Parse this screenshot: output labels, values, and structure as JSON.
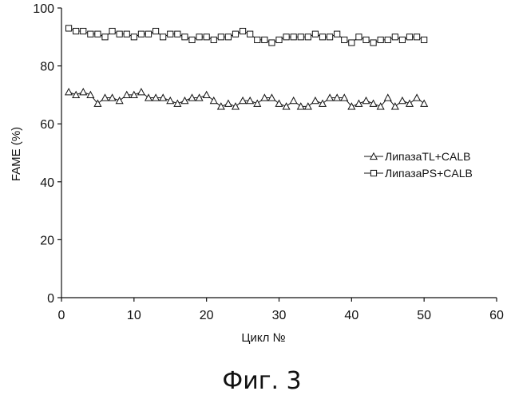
{
  "caption": "Фиг. 3",
  "chart_data": {
    "type": "line",
    "title": "",
    "xlabel": "Цикл №",
    "ylabel": "FAME (%)",
    "xlim": [
      0,
      60
    ],
    "ylim": [
      0,
      100
    ],
    "xticks": [
      0,
      10,
      20,
      30,
      40,
      50,
      60
    ],
    "yticks": [
      0,
      20,
      40,
      60,
      80,
      100
    ],
    "grid": false,
    "legend_position": "right",
    "x": [
      1,
      2,
      3,
      4,
      5,
      6,
      7,
      8,
      9,
      10,
      11,
      12,
      13,
      14,
      15,
      16,
      17,
      18,
      19,
      20,
      21,
      22,
      23,
      24,
      25,
      26,
      27,
      28,
      29,
      30,
      31,
      32,
      33,
      34,
      35,
      36,
      37,
      38,
      39,
      40,
      41,
      42,
      43,
      44,
      45,
      46,
      47,
      48,
      49,
      50
    ],
    "series": [
      {
        "name": "ЛипазаTL+CALB",
        "marker": "triangle",
        "color": "#111111",
        "values": [
          71,
          70,
          71,
          70,
          67,
          69,
          69,
          68,
          70,
          70,
          71,
          69,
          69,
          69,
          68,
          67,
          68,
          69,
          69,
          70,
          68,
          66,
          67,
          66,
          68,
          68,
          67,
          69,
          69,
          67,
          66,
          68,
          66,
          66,
          68,
          67,
          69,
          69,
          69,
          66,
          67,
          68,
          67,
          66,
          69,
          66,
          68,
          67,
          69,
          67
        ]
      },
      {
        "name": "ЛипазаPS+CALB",
        "marker": "square",
        "color": "#111111",
        "values": [
          93,
          92,
          92,
          91,
          91,
          90,
          92,
          91,
          91,
          90,
          91,
          91,
          92,
          90,
          91,
          91,
          90,
          89,
          90,
          90,
          89,
          90,
          90,
          91,
          92,
          91,
          89,
          89,
          88,
          89,
          90,
          90,
          90,
          90,
          91,
          90,
          90,
          91,
          89,
          88,
          90,
          89,
          88,
          89,
          89,
          90,
          89,
          90,
          90,
          89
        ]
      }
    ]
  }
}
